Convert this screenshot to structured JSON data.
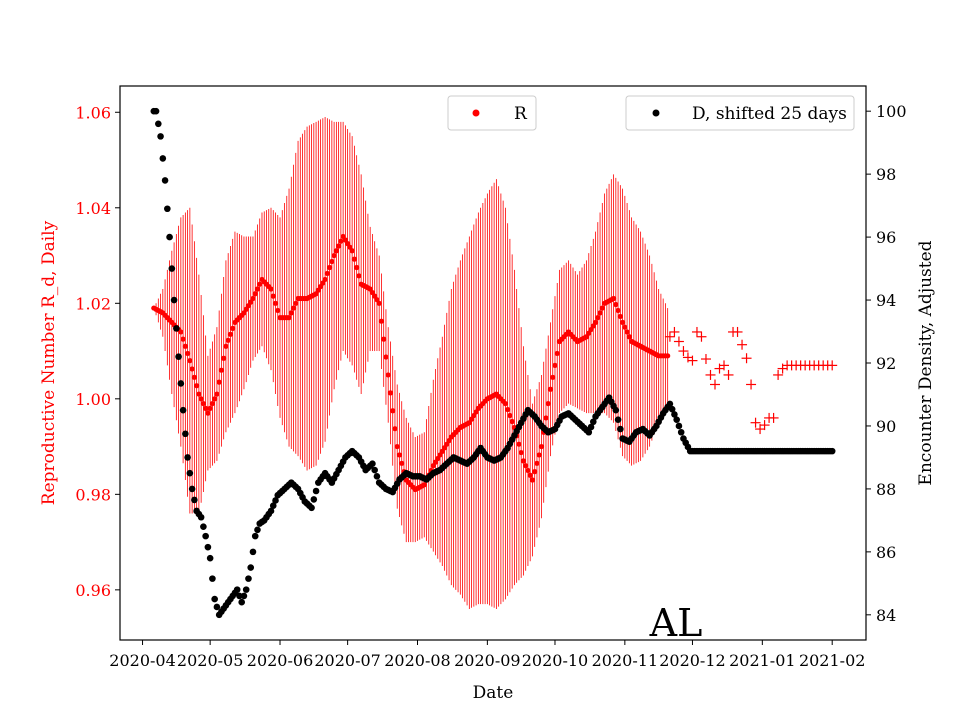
{
  "chart_data": {
    "type": "scatter",
    "state_label": "AL",
    "xlabel": "Date",
    "ylabel_left": "Reproductive Number R_d, Daily",
    "ylabel_right": "Encounter Density, Adjusted",
    "x_ticks": [
      "2020-04",
      "2020-05",
      "2020-06",
      "2020-07",
      "2020-08",
      "2020-09",
      "2020-10",
      "2020-11",
      "2020-12",
      "2021-01",
      "2021-02"
    ],
    "y_left_ticks": [
      "0.96",
      "0.98",
      "1.00",
      "1.02",
      "1.04",
      "1.06"
    ],
    "y_right_ticks": [
      "84",
      "86",
      "88",
      "90",
      "92",
      "94",
      "96",
      "98",
      "100"
    ],
    "xlim": [
      "2020-03-22",
      "2021-02-16"
    ],
    "ylim_left": [
      0.9495,
      1.0655
    ],
    "ylim_right": [
      83.2,
      100.8
    ],
    "colors": {
      "R": "#ff0000",
      "D": "#000000",
      "left_axis": "#ff0000",
      "right_axis": "#000000"
    },
    "legend_left": {
      "label": "R",
      "placement": "top-center"
    },
    "legend_right": {
      "label": "D, shifted 25 days",
      "placement": "top-right"
    },
    "series_R": {
      "name": "R",
      "axis": "left",
      "marker": "dot",
      "x": [
        "2020-04-06",
        "2020-04-10",
        "2020-04-14",
        "2020-04-18",
        "2020-04-22",
        "2020-04-26",
        "2020-04-30",
        "2020-05-04",
        "2020-05-08",
        "2020-05-12",
        "2020-05-16",
        "2020-05-20",
        "2020-05-24",
        "2020-05-28",
        "2020-06-01",
        "2020-06-05",
        "2020-06-09",
        "2020-06-13",
        "2020-06-17",
        "2020-06-21",
        "2020-06-25",
        "2020-06-29",
        "2020-07-03",
        "2020-07-07",
        "2020-07-11",
        "2020-07-15",
        "2020-07-19",
        "2020-07-23",
        "2020-07-27",
        "2020-07-31",
        "2020-08-04",
        "2020-08-08",
        "2020-08-12",
        "2020-08-16",
        "2020-08-20",
        "2020-08-24",
        "2020-08-28",
        "2020-09-01",
        "2020-09-05",
        "2020-09-09",
        "2020-09-13",
        "2020-09-17",
        "2020-09-21",
        "2020-09-25",
        "2020-09-29",
        "2020-10-03",
        "2020-10-07",
        "2020-10-11",
        "2020-10-15",
        "2020-10-19",
        "2020-10-23",
        "2020-10-27",
        "2020-10-31",
        "2020-11-04",
        "2020-11-08",
        "2020-11-12",
        "2020-11-16",
        "2020-11-20"
      ],
      "y": [
        1.019,
        1.018,
        1.016,
        1.014,
        1.008,
        1.001,
        0.997,
        1.001,
        1.011,
        1.016,
        1.018,
        1.021,
        1.025,
        1.023,
        1.017,
        1.017,
        1.021,
        1.021,
        1.022,
        1.025,
        1.03,
        1.034,
        1.031,
        1.024,
        1.023,
        1.02,
        1.005,
        0.99,
        0.983,
        0.981,
        0.982,
        0.986,
        0.989,
        0.992,
        0.994,
        0.995,
        0.998,
        1.0,
        1.001,
        0.999,
        0.994,
        0.987,
        0.983,
        0.99,
        1.002,
        1.012,
        1.014,
        1.012,
        1.013,
        1.016,
        1.02,
        1.021,
        1.016,
        1.012,
        1.011,
        1.01,
        1.009,
        1.009
      ],
      "err": [
        0.0,
        0.005,
        0.015,
        0.024,
        0.032,
        0.025,
        0.012,
        0.014,
        0.018,
        0.019,
        0.016,
        0.013,
        0.014,
        0.017,
        0.021,
        0.027,
        0.033,
        0.036,
        0.036,
        0.034,
        0.028,
        0.024,
        0.024,
        0.023,
        0.013,
        0.01,
        0.01,
        0.013,
        0.013,
        0.011,
        0.011,
        0.018,
        0.024,
        0.031,
        0.035,
        0.039,
        0.041,
        0.043,
        0.045,
        0.041,
        0.033,
        0.024,
        0.016,
        0.015,
        0.014,
        0.015,
        0.015,
        0.014,
        0.016,
        0.019,
        0.023,
        0.026,
        0.028,
        0.026,
        0.024,
        0.02,
        0.014,
        0.01
      ]
    },
    "series_R_late": {
      "name": "R",
      "axis": "left",
      "marker": "plus",
      "x": [
        "2020-11-21",
        "2020-11-23",
        "2020-11-26",
        "2020-11-28",
        "2020-12-01",
        "2020-12-03",
        "2020-12-05",
        "2020-12-08",
        "2020-12-11",
        "2020-12-14",
        "2020-12-17",
        "2020-12-19",
        "2020-12-21",
        "2020-12-24",
        "2020-12-26",
        "2020-12-29",
        "2021-01-01",
        "2021-01-03",
        "2021-01-06",
        "2021-01-08",
        "2021-01-11",
        "2021-01-14",
        "2021-01-17",
        "2021-01-20",
        "2021-01-23",
        "2021-01-26",
        "2021-01-29",
        "2021-02-01"
      ],
      "y": [
        1.013,
        1.014,
        1.011,
        1.009,
        1.008,
        1.014,
        1.013,
        1.006,
        1.003,
        1.008,
        1.005,
        1.014,
        1.014,
        1.01,
        1.007,
        0.995,
        0.993,
        0.996,
        0.996,
        1.005,
        1.007,
        1.007,
        1.007,
        1.007,
        1.007,
        1.007,
        1.007,
        1.007
      ]
    },
    "series_D": {
      "name": "D, shifted 25 days",
      "axis": "right",
      "marker": "dot",
      "x": [
        "2020-04-06",
        "2020-04-07",
        "2020-04-09",
        "2020-04-11",
        "2020-04-13",
        "2020-04-15",
        "2020-04-17",
        "2020-04-19",
        "2020-04-21",
        "2020-04-23",
        "2020-04-25",
        "2020-04-27",
        "2020-04-29",
        "2020-05-01",
        "2020-05-03",
        "2020-05-05",
        "2020-05-07",
        "2020-05-09",
        "2020-05-11",
        "2020-05-13",
        "2020-05-15",
        "2020-05-17",
        "2020-05-19",
        "2020-05-21",
        "2020-05-23",
        "2020-05-25",
        "2020-05-28",
        "2020-05-31",
        "2020-06-03",
        "2020-06-06",
        "2020-06-09",
        "2020-06-12",
        "2020-06-15",
        "2020-06-18",
        "2020-06-21",
        "2020-06-24",
        "2020-06-27",
        "2020-06-30",
        "2020-07-03",
        "2020-07-06",
        "2020-07-09",
        "2020-07-12",
        "2020-07-15",
        "2020-07-18",
        "2020-07-21",
        "2020-07-24",
        "2020-07-27",
        "2020-07-30",
        "2020-08-02",
        "2020-08-05",
        "2020-08-08",
        "2020-08-11",
        "2020-08-14",
        "2020-08-17",
        "2020-08-20",
        "2020-08-23",
        "2020-08-26",
        "2020-08-29",
        "2020-09-01",
        "2020-09-04",
        "2020-09-07",
        "2020-09-10",
        "2020-09-13",
        "2020-09-16",
        "2020-09-19",
        "2020-09-22",
        "2020-09-25",
        "2020-09-28",
        "2020-10-01",
        "2020-10-04",
        "2020-10-07",
        "2020-10-10",
        "2020-10-13",
        "2020-10-16",
        "2020-10-19",
        "2020-10-22",
        "2020-10-25",
        "2020-10-28",
        "2020-10-31",
        "2020-11-03",
        "2020-11-06",
        "2020-11-09",
        "2020-11-12",
        "2020-11-15",
        "2020-11-18",
        "2020-11-21",
        "2020-11-24",
        "2020-11-27",
        "2020-11-30",
        "2020-12-03",
        "2020-12-06",
        "2020-12-09",
        "2020-12-12",
        "2020-12-15",
        "2020-12-18",
        "2020-12-21",
        "2020-12-24",
        "2020-12-27",
        "2020-12-30",
        "2021-01-02",
        "2021-01-05",
        "2021-01-08",
        "2021-01-11",
        "2021-01-14",
        "2021-01-17",
        "2021-01-20",
        "2021-01-23",
        "2021-01-26",
        "2021-01-29",
        "2021-02-01"
      ],
      "y": [
        100.0,
        100.0,
        99.2,
        97.8,
        96.0,
        94.0,
        92.2,
        90.5,
        89.0,
        88.0,
        87.3,
        87.1,
        86.5,
        85.8,
        84.5,
        84.0,
        84.2,
        84.4,
        84.6,
        84.8,
        84.4,
        84.8,
        85.5,
        86.5,
        86.9,
        87.0,
        87.3,
        87.8,
        88.0,
        88.2,
        88.0,
        87.6,
        87.4,
        88.2,
        88.5,
        88.2,
        88.6,
        89.0,
        89.2,
        89.0,
        88.6,
        88.8,
        88.2,
        88.0,
        87.9,
        88.3,
        88.5,
        88.4,
        88.4,
        88.3,
        88.5,
        88.6,
        88.8,
        89.0,
        88.9,
        88.8,
        89.0,
        89.3,
        89.0,
        88.9,
        89.0,
        89.3,
        89.7,
        90.1,
        90.5,
        90.3,
        90.0,
        89.8,
        89.9,
        90.3,
        90.4,
        90.2,
        90.0,
        89.8,
        90.3,
        90.6,
        90.9,
        90.5,
        89.6,
        89.5,
        89.8,
        89.9,
        89.7,
        90.0,
        90.4,
        90.7,
        90.2,
        89.6,
        89.2,
        89.2,
        89.2,
        89.2,
        89.2,
        89.2,
        89.2,
        89.2,
        89.2,
        89.2,
        89.2,
        89.2,
        89.2,
        89.2,
        89.2,
        89.2,
        89.2,
        89.2,
        89.2,
        89.2,
        89.2,
        89.2
      ]
    }
  }
}
